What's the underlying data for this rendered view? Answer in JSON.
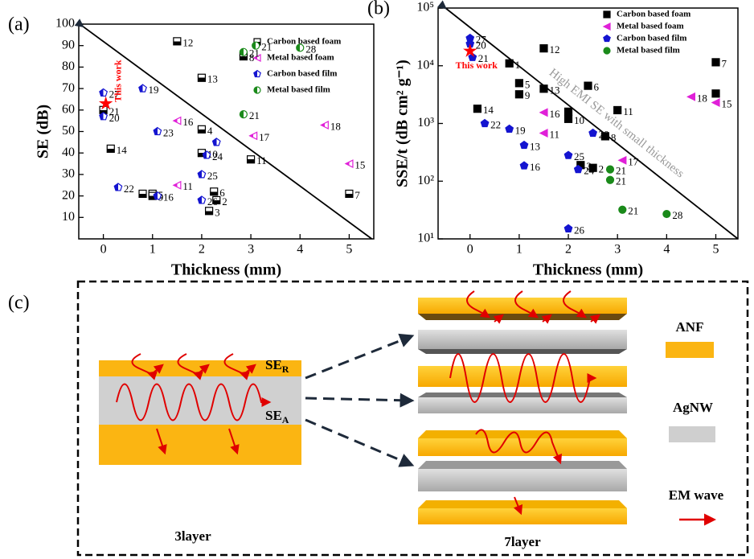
{
  "chart_data": [
    {
      "type": "scatter",
      "panel_label": "(a)",
      "x_label": "Thickness (mm)",
      "y_label": "SE (dB)",
      "xlim": [
        -0.5,
        5.5
      ],
      "xticks": [
        0,
        1,
        2,
        3,
        4,
        5
      ],
      "ylim": [
        0,
        100
      ],
      "yticks": [
        10,
        20,
        30,
        40,
        50,
        60,
        70,
        80,
        90,
        100
      ],
      "log_y": false,
      "marker_fill": "half",
      "legend": "upper right",
      "series": [
        {
          "name": "Carbon based foam",
          "color": "#000000",
          "marker": "square",
          "x": [
            1.5,
            2.0,
            2.85,
            2.0,
            2.0,
            3.0,
            0.15,
            0.8,
            1.0,
            1.0,
            2.25,
            2.3,
            2.15,
            5.0,
            0.0
          ],
          "values": [
            92,
            75,
            85,
            51,
            40,
            37,
            42,
            21,
            21,
            20,
            22,
            18,
            13,
            21,
            60
          ],
          "labels": [
            "12",
            "13",
            "8",
            "4",
            "10",
            "11",
            "14",
            "1",
            "5",
            "9",
            "6",
            "2",
            "3",
            "7",
            "21"
          ]
        },
        {
          "name": "Metal based foam",
          "color": "#e020d8",
          "marker": "triangle-left",
          "x": [
            1.5,
            1.5,
            3.05,
            4.5,
            5.0
          ],
          "values": [
            55,
            25,
            48,
            53,
            35
          ],
          "labels": [
            "16",
            "11",
            "17",
            "18",
            "15"
          ]
        },
        {
          "name": "Carbon based film",
          "color": "#1414d0",
          "marker": "pentagon",
          "x": [
            0.0,
            0.8,
            1.1,
            0.3,
            1.1,
            2.0,
            2.1,
            2.0,
            2.3,
            0.0
          ],
          "values": [
            68,
            70,
            50,
            24,
            20,
            30,
            39,
            18,
            45,
            57
          ],
          "labels": [
            "27",
            "19",
            "23",
            "22",
            "16",
            "25",
            "24",
            "26",
            null,
            "20"
          ]
        },
        {
          "name": "Metal based film",
          "color": "#1a8a1a",
          "marker": "circle",
          "x": [
            3.1,
            4.0,
            2.85,
            2.85
          ],
          "values": [
            90,
            89,
            87,
            58
          ],
          "labels": [
            "21",
            "28",
            "21",
            "21"
          ]
        }
      ],
      "highlight": {
        "name": "This work",
        "color": "#ff0000",
        "x": 0.05,
        "y": 63
      },
      "guide_line": {
        "x": [
          -0.42,
          5.46
        ],
        "y": [
          99,
          0
        ]
      }
    },
    {
      "type": "scatter",
      "panel_label": "(b)",
      "x_label": "Thickness (mm)",
      "y_label": "SSE/t (dB cm² g⁻¹)",
      "xlim": [
        -0.65,
        5.45
      ],
      "xticks": [
        0,
        1,
        2,
        3,
        4,
        5
      ],
      "ylim": [
        10,
        100000
      ],
      "yticks": [
        {
          "value": 10,
          "label": "10¹"
        },
        {
          "value": 100,
          "label": "10²"
        },
        {
          "value": 1000,
          "label": "10³"
        },
        {
          "value": 10000,
          "label": "10⁴"
        },
        {
          "value": 100000,
          "label": "10⁵"
        }
      ],
      "log_y": true,
      "marker_fill": "full",
      "legend": "upper right",
      "series": [
        {
          "name": "Carbon based foam",
          "color": "#000000",
          "marker": "square",
          "x": [
            1.5,
            0.8,
            1.0,
            1.0,
            1.5,
            2.4,
            5.0,
            5.0,
            0.15,
            2.0,
            2.0,
            3.0,
            2.75,
            2.25,
            2.5
          ],
          "values": [
            20000,
            11000,
            5000,
            3200,
            4000,
            4500,
            11500,
            3300,
            1800,
            1200,
            1600,
            1700,
            600,
            190,
            170
          ],
          "labels": [
            "12",
            "1",
            "5",
            "9",
            "13",
            "6",
            "7",
            null,
            "14",
            "10",
            null,
            "11",
            "8",
            "3",
            "2"
          ]
        },
        {
          "name": "Metal based foam",
          "color": "#e020d8",
          "marker": "triangle-left",
          "x": [
            1.5,
            1.5,
            4.5,
            5.0,
            3.1
          ],
          "values": [
            1550,
            680,
            2900,
            2300,
            230
          ],
          "labels": [
            "16",
            "11",
            "18",
            "15",
            "17"
          ]
        },
        {
          "name": "Carbon based film",
          "color": "#1414d0",
          "marker": "pentagon",
          "x": [
            0.0,
            0.0,
            0.05,
            0.3,
            0.8,
            1.1,
            1.1,
            2.0,
            2.2,
            2.5,
            2.0
          ],
          "values": [
            30000,
            24000,
            14000,
            1000,
            800,
            420,
            185,
            280,
            160,
            680,
            15
          ],
          "labels": [
            "27",
            "20",
            "21",
            "22",
            "19",
            "13",
            "16",
            "25",
            "24",
            "20",
            "26"
          ]
        },
        {
          "name": "Metal based film",
          "color": "#1a8a1a",
          "marker": "circle",
          "x": [
            2.85,
            2.85,
            3.1,
            4.0
          ],
          "values": [
            160,
            105,
            32,
            27
          ],
          "labels": [
            "21",
            "21",
            "21",
            "28"
          ]
        }
      ],
      "highlight": {
        "name": "This work",
        "color": "#ff0000",
        "x": 0.0,
        "y": 18000
      },
      "guide_line": {
        "x": [
          -0.5,
          5.45
        ],
        "y": [
          100000,
          10
        ]
      },
      "annotation": "High EMI SE with small thickness"
    }
  ],
  "diagram": {
    "panel_label": "(c)",
    "se_r": {
      "text": "SE",
      "sub": "R"
    },
    "se_a": {
      "text": "SE",
      "sub": "A"
    },
    "legend": [
      "ANF",
      "AgNW",
      "EM wave"
    ],
    "stacks": [
      "3layer",
      "7layer"
    ]
  }
}
